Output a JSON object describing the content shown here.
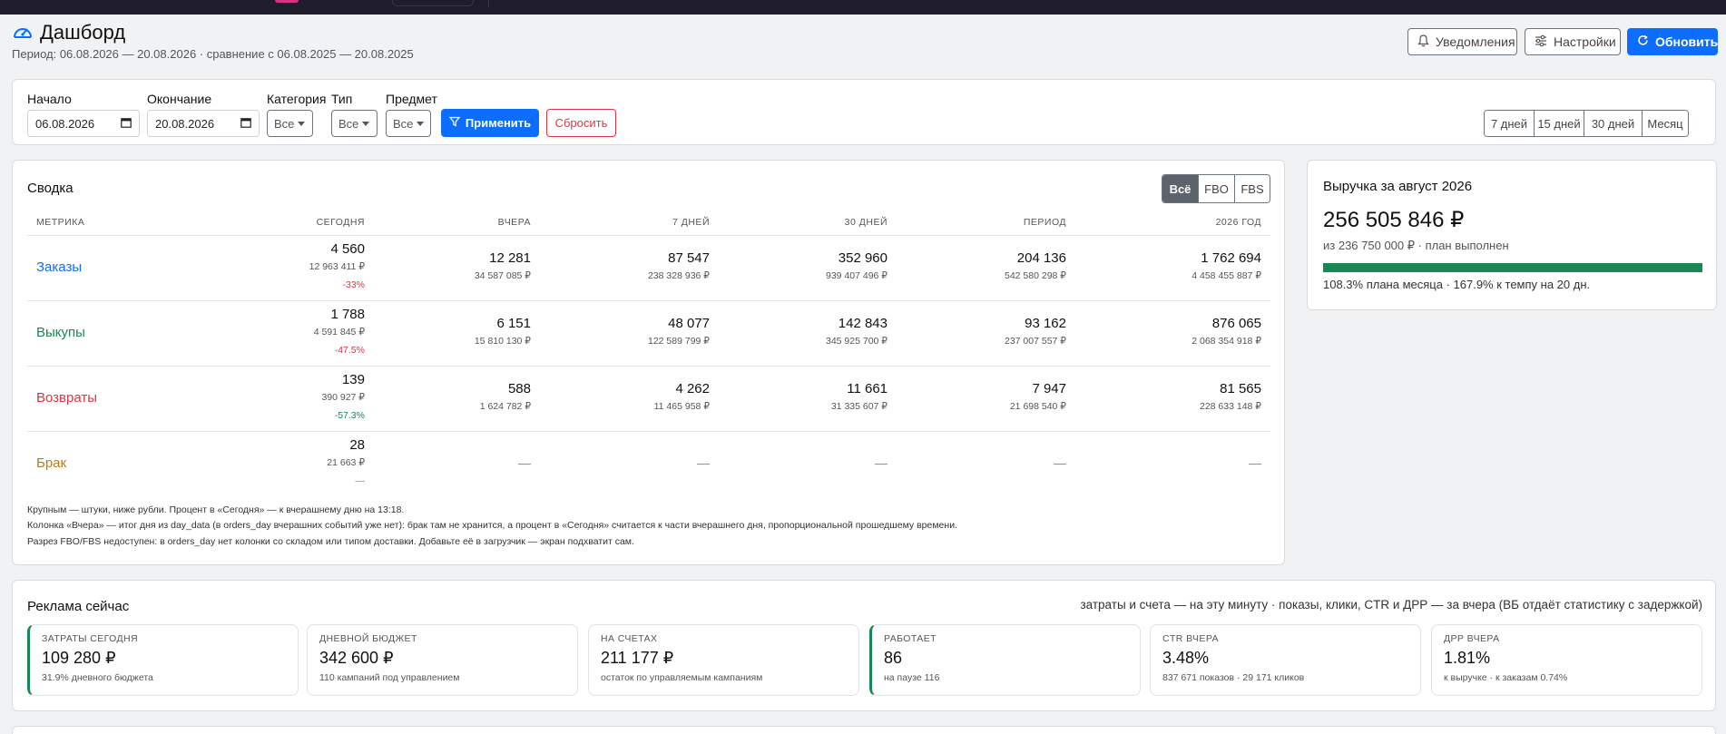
{
  "header": {
    "title": "Дашборд",
    "period": "Период: 06.08.2026 — 20.08.2026 · сравнение с 06.08.2025 — 20.08.2025",
    "notifications_label": "Уведомления",
    "settings_label": "Настройки",
    "refresh_label": "Обновить"
  },
  "filters": {
    "start_label": "Начало",
    "start_value": "06.08.2026",
    "end_label": "Окончание",
    "end_value": "20.08.2026",
    "category_label": "Категория",
    "category_value": "Все",
    "type_label": "Тип",
    "type_value": "Все",
    "subject_label": "Предмет",
    "subject_value": "Все",
    "apply_label": "Применить",
    "reset_label": "Сбросить",
    "ranges": [
      "7 дней",
      "15 дней",
      "30 дней",
      "Месяц"
    ]
  },
  "summary": {
    "title": "Сводка",
    "toggle": [
      "Всё",
      "FBO",
      "FBS"
    ],
    "toggle_active": "Всё",
    "columns": [
      "МЕТРИКА",
      "СЕГОДНЯ",
      "ВЧЕРА",
      "7 ДНЕЙ",
      "30 ДНЕЙ",
      "ПЕРИОД",
      "2026 ГОД"
    ],
    "rows": [
      {
        "name": "Заказы",
        "color": "#0d6efd",
        "today": {
          "qty": "4 560",
          "rub": "12 963 411 ₽",
          "pct": "-33%",
          "pct_color": "#dc3545"
        },
        "cells": [
          {
            "qty": "12 281",
            "rub": "34 587 085 ₽"
          },
          {
            "qty": "87 547",
            "rub": "238 328 936 ₽"
          },
          {
            "qty": "352 960",
            "rub": "939 407 496 ₽"
          },
          {
            "qty": "204 136",
            "rub": "542 580 298 ₽"
          },
          {
            "qty": "1 762 694",
            "rub": "4 458 455 887 ₽"
          }
        ]
      },
      {
        "name": "Выкупы",
        "color": "#198754",
        "today": {
          "qty": "1 788",
          "rub": "4 591 845 ₽",
          "pct": "-47.5%",
          "pct_color": "#dc3545"
        },
        "cells": [
          {
            "qty": "6 151",
            "rub": "15 810 130 ₽"
          },
          {
            "qty": "48 077",
            "rub": "122 589 799 ₽"
          },
          {
            "qty": "142 843",
            "rub": "345 925 700 ₽"
          },
          {
            "qty": "93 162",
            "rub": "237 007 557 ₽"
          },
          {
            "qty": "876 065",
            "rub": "2 068 354 918 ₽"
          }
        ]
      },
      {
        "name": "Возвраты",
        "color": "#dc3545",
        "today": {
          "qty": "139",
          "rub": "390 927 ₽",
          "pct": "-57.3%",
          "pct_color": "#198754"
        },
        "cells": [
          {
            "qty": "588",
            "rub": "1 624 782 ₽"
          },
          {
            "qty": "4 262",
            "rub": "11 465 958 ₽"
          },
          {
            "qty": "11 661",
            "rub": "31 335 607 ₽"
          },
          {
            "qty": "7 947",
            "rub": "21 698 540 ₽"
          },
          {
            "qty": "81 565",
            "rub": "228 633 148 ₽"
          }
        ]
      },
      {
        "name": "Брак",
        "color": "#b7791f",
        "today": {
          "qty": "28",
          "rub": "21 663 ₽",
          "pct": "—",
          "pct_color": "#888888"
        },
        "cells": [
          "—",
          "—",
          "—",
          "—",
          "—"
        ]
      }
    ],
    "notes": [
      "Крупным — штуки, ниже рубли. Процент в «Сегодня» — к вчерашнему дню на 13:18.",
      "Колонка «Вчера» — итог дня из day_data (в orders_day вчерашних событий уже нет): брак там не хранится, а процент в «Сегодня» считается к части вчерашнего дня, пропорциональной прошедшему времени.",
      "Разрез FBO/FBS недоступен: в orders_day нет колонки со складом или типом доставки. Добавьте её в загрузчик — экран подхватит сам."
    ]
  },
  "revenue": {
    "title": "Выручка за август 2026",
    "value": "256 505 846 ₽",
    "sub": "из 236 750 000 ₽ · план выполнен",
    "progress": 1.0,
    "foot": "108.3% плана месяца · 167.9% к темпу на 20 дн."
  },
  "ads": {
    "title": "Реклама сейчас",
    "note": "затраты и счета — на эту минуту · показы, клики, CTR и ДРР — за вчера (ВБ отдаёт статистику с задержкой)",
    "kpis": [
      {
        "label": "ЗАТРАТЫ СЕГОДНЯ",
        "value": "109 280 ₽",
        "sub": "31.9% дневного бюджета",
        "accent": "green"
      },
      {
        "label": "ДНЕВНОЙ БЮДЖЕТ",
        "value": "342 600 ₽",
        "sub": "110 кампаний под управлением",
        "accent": "none"
      },
      {
        "label": "НА СЧЕТАХ",
        "value": "211 177 ₽",
        "sub": "остаток по управляемым кампаниям",
        "accent": "none"
      },
      {
        "label": "РАБОТАЕТ",
        "value": "86",
        "sub": "на паузе 116",
        "accent": "green"
      },
      {
        "label": "CTR ВЧЕРА",
        "value": "3.48%",
        "sub": "837 671 показов · 29 171 кликов",
        "accent": "none"
      },
      {
        "label": "ДРР ВЧЕРА",
        "value": "1.81%",
        "sub": "к выручке · к заказам 0.74%",
        "accent": "none"
      }
    ]
  },
  "colors": {
    "primary": "#0d6efd",
    "success": "#198754",
    "danger": "#dc3545",
    "warning_text": "#b7791f",
    "topbar": "#1f1d2b"
  },
  "icons": {
    "title": "speedometer-icon",
    "notifications": "bell-icon",
    "settings": "sliders-icon",
    "refresh": "refresh-icon",
    "apply": "funnel-icon",
    "date": "calendar-icon"
  }
}
